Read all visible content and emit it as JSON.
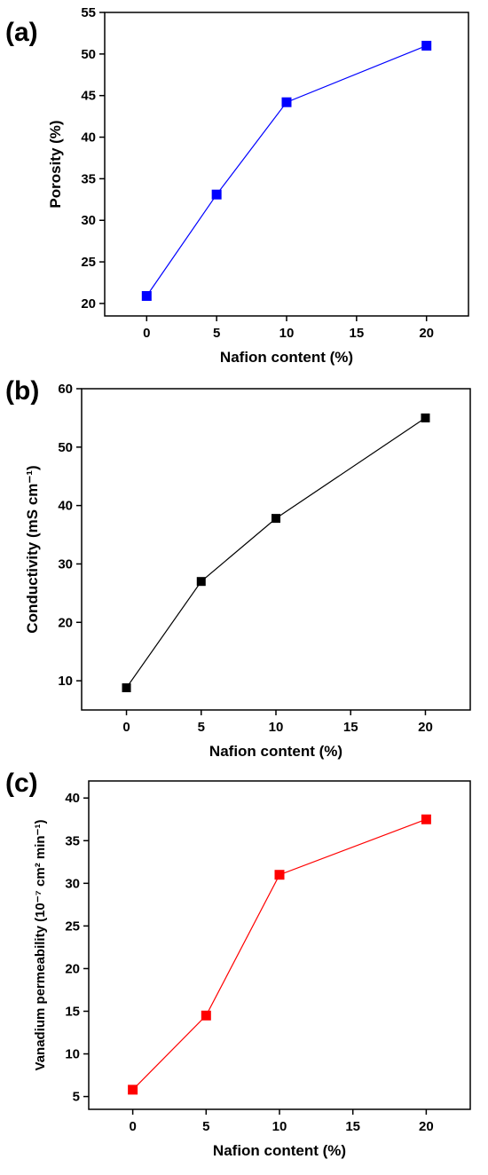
{
  "chart_data": [
    {
      "type": "line",
      "panel_label": "(a)",
      "xlabel": "Nafion content (%)",
      "ylabel": "Porosity (%)",
      "xlim": [
        -3,
        23
      ],
      "ylim": [
        18.5,
        55
      ],
      "xticks": [
        0,
        5,
        10,
        15,
        20
      ],
      "yticks": [
        20,
        25,
        30,
        35,
        40,
        45,
        50,
        55
      ],
      "color": "#0000ff",
      "series": [
        {
          "x": [
            0,
            5,
            10,
            20
          ],
          "values": [
            20.9,
            33.1,
            44.2,
            51.0
          ]
        }
      ]
    },
    {
      "type": "line",
      "panel_label": "(b)",
      "xlabel": "Nafion content (%)",
      "ylabel": "Conductivity (mS cm⁻¹)",
      "xlim": [
        -3,
        23
      ],
      "ylim": [
        5,
        60
      ],
      "xticks": [
        0,
        5,
        10,
        15,
        20
      ],
      "yticks": [
        10,
        20,
        30,
        40,
        50,
        60
      ],
      "color": "#000000",
      "series": [
        {
          "x": [
            0,
            5,
            10,
            20
          ],
          "values": [
            8.8,
            27.0,
            37.8,
            55.0
          ]
        }
      ]
    },
    {
      "type": "line",
      "panel_label": "(c)",
      "xlabel": "Nafion content (%)",
      "ylabel": "Vanadium permeability (10⁻⁷ cm² min⁻¹)",
      "xlim": [
        -3,
        23
      ],
      "ylim": [
        3.5,
        42
      ],
      "xticks": [
        0,
        5,
        10,
        15,
        20
      ],
      "yticks": [
        5,
        10,
        15,
        20,
        25,
        30,
        35,
        40
      ],
      "color": "#ff0000",
      "series": [
        {
          "x": [
            0,
            5,
            10,
            20
          ],
          "values": [
            5.8,
            14.5,
            31.0,
            37.5
          ]
        }
      ]
    }
  ]
}
